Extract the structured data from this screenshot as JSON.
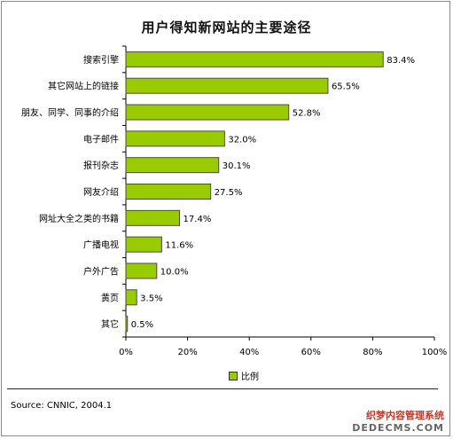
{
  "chart_data": {
    "type": "bar",
    "orientation": "horizontal",
    "title": "用户得知新网站的主要途径",
    "categories": [
      "搜索引擎",
      "其它网站上的链接",
      "朋友、同学、同事的介绍",
      "电子邮件",
      "报刊杂志",
      "网友介绍",
      "网址大全之类的书籍",
      "广播电视",
      "户外广告",
      "黄页",
      "其它"
    ],
    "series": [
      {
        "name": "比例",
        "values": [
          83.4,
          65.5,
          52.8,
          32.0,
          30.1,
          27.5,
          17.4,
          11.6,
          10.0,
          3.5,
          0.5
        ]
      }
    ],
    "value_labels": [
      "83.4%",
      "65.5%",
      "52.8%",
      "32.0%",
      "30.1%",
      "27.5%",
      "17.4%",
      "11.6%",
      "10.0%",
      "3.5%",
      "0.5%"
    ],
    "xlim": [
      0,
      100
    ],
    "xticks": [
      "0%",
      "20%",
      "40%",
      "60%",
      "80%",
      "100%"
    ],
    "grid": false,
    "legend_position": "bottom"
  },
  "source": "Source: CNNIC, 2004.1",
  "watermark": {
    "line1": "织梦内容管理系统",
    "line2": "DEDECMS.COM"
  },
  "colors": {
    "bar": "#99cc00",
    "bar_border": "#4a4a4a",
    "axis": "#000000"
  }
}
